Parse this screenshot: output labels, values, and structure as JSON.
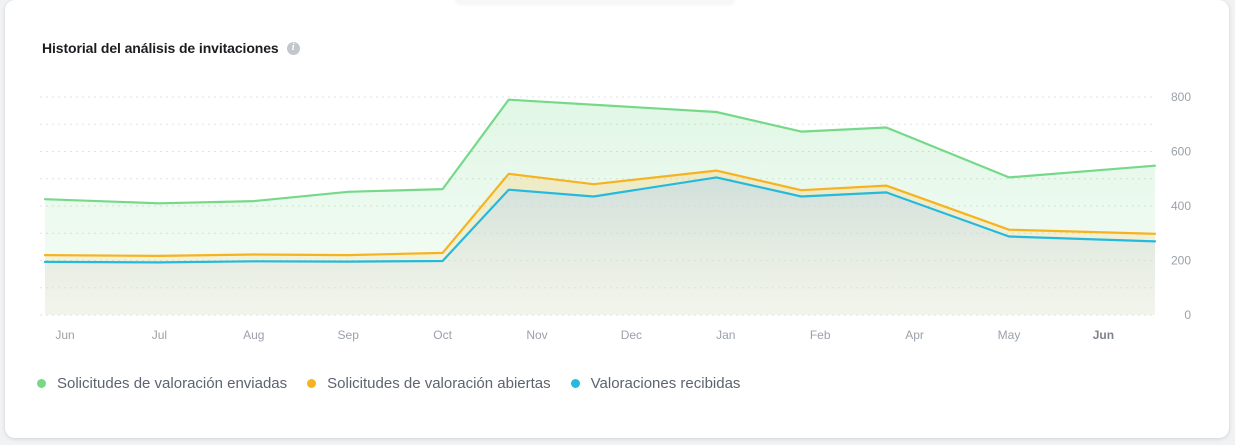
{
  "card": {
    "title": "Historial del análisis de invitaciones",
    "info_icon": "info-icon"
  },
  "colors": {
    "enviadas": "#76d98a",
    "abiertas": "#f7b21f",
    "recibidas": "#25b9dd",
    "grid": "#dfe2e6",
    "tick": "#9ba1ab"
  },
  "chart_data": {
    "type": "area",
    "x": [
      "Jun",
      "Jul",
      "Aug",
      "Sep",
      "Oct",
      "Nov",
      "Dec",
      "Jan",
      "Feb",
      "Apr",
      "May",
      "Jun"
    ],
    "x_bold": [
      false,
      false,
      false,
      false,
      false,
      false,
      false,
      false,
      false,
      false,
      false,
      true
    ],
    "ylim": [
      0,
      800
    ],
    "y_ticks": [
      "0",
      "200",
      "400",
      "600",
      "800"
    ],
    "y_ticks_position": "right",
    "grid": true,
    "legend_position": "bottom-left",
    "series": [
      {
        "name": "Solicitudes de valoración enviadas",
        "color": "#76d98a",
        "points": [
          [
            0.0,
            425
          ],
          [
            1.0,
            410
          ],
          [
            2.0,
            418
          ],
          [
            3.0,
            452
          ],
          [
            4.0,
            462
          ],
          [
            4.7,
            790
          ],
          [
            6.9,
            745
          ],
          [
            7.8,
            673
          ],
          [
            8.7,
            688
          ],
          [
            10.0,
            505
          ],
          [
            10.95,
            548
          ]
        ]
      },
      {
        "name": "Solicitudes de valoración abiertas",
        "color": "#f7b21f",
        "points": [
          [
            0.0,
            220
          ],
          [
            1.0,
            217
          ],
          [
            2.0,
            222
          ],
          [
            3.0,
            220
          ],
          [
            4.0,
            228
          ],
          [
            4.7,
            518
          ],
          [
            5.6,
            480
          ],
          [
            6.9,
            530
          ],
          [
            7.8,
            458
          ],
          [
            8.7,
            475
          ],
          [
            10.0,
            313
          ],
          [
            10.95,
            298
          ]
        ]
      },
      {
        "name": "Valoraciones recibidas",
        "color": "#25b9dd",
        "points": [
          [
            0.0,
            195
          ],
          [
            1.0,
            193
          ],
          [
            2.0,
            197
          ],
          [
            3.0,
            196
          ],
          [
            4.0,
            198
          ],
          [
            4.7,
            460
          ],
          [
            5.6,
            435
          ],
          [
            6.9,
            505
          ],
          [
            7.8,
            435
          ],
          [
            8.7,
            450
          ],
          [
            10.0,
            288
          ],
          [
            10.95,
            270
          ]
        ]
      }
    ]
  },
  "legend": [
    {
      "label": "Solicitudes de valoración enviadas",
      "color": "#76d98a"
    },
    {
      "label": "Solicitudes de valoración abiertas",
      "color": "#f7b21f"
    },
    {
      "label": "Valoraciones recibidas",
      "color": "#25b9dd"
    }
  ]
}
